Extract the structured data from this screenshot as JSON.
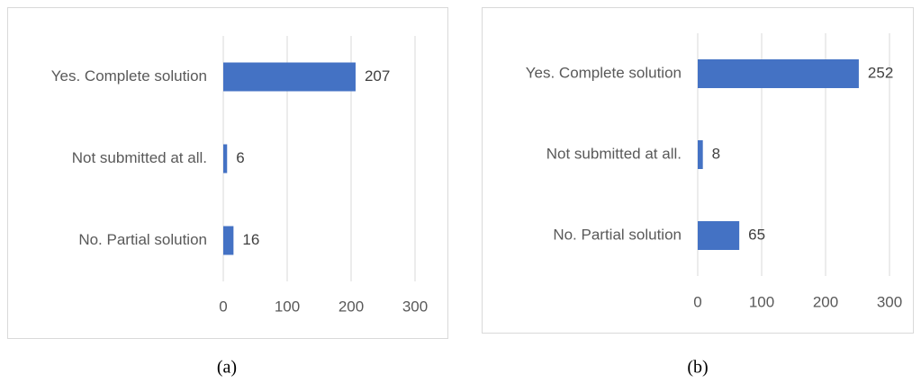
{
  "chart_data": [
    {
      "type": "bar",
      "orientation": "horizontal",
      "caption": "(a)",
      "categories": [
        "Yes. Complete solution",
        "Not submitted at all.",
        "No. Partial solution"
      ],
      "values": [
        207,
        6,
        16
      ],
      "color": "#4472c4",
      "xlim": [
        0,
        300
      ],
      "xticks": [
        0,
        100,
        200,
        300
      ],
      "grid": true
    },
    {
      "type": "bar",
      "orientation": "horizontal",
      "caption": "(b)",
      "categories": [
        "Yes. Complete solution",
        "Not submitted at all.",
        "No. Partial solution"
      ],
      "values": [
        252,
        8,
        65
      ],
      "color": "#4472c4",
      "xlim": [
        0,
        300
      ],
      "xticks": [
        0,
        100,
        200,
        300
      ],
      "grid": true
    }
  ]
}
